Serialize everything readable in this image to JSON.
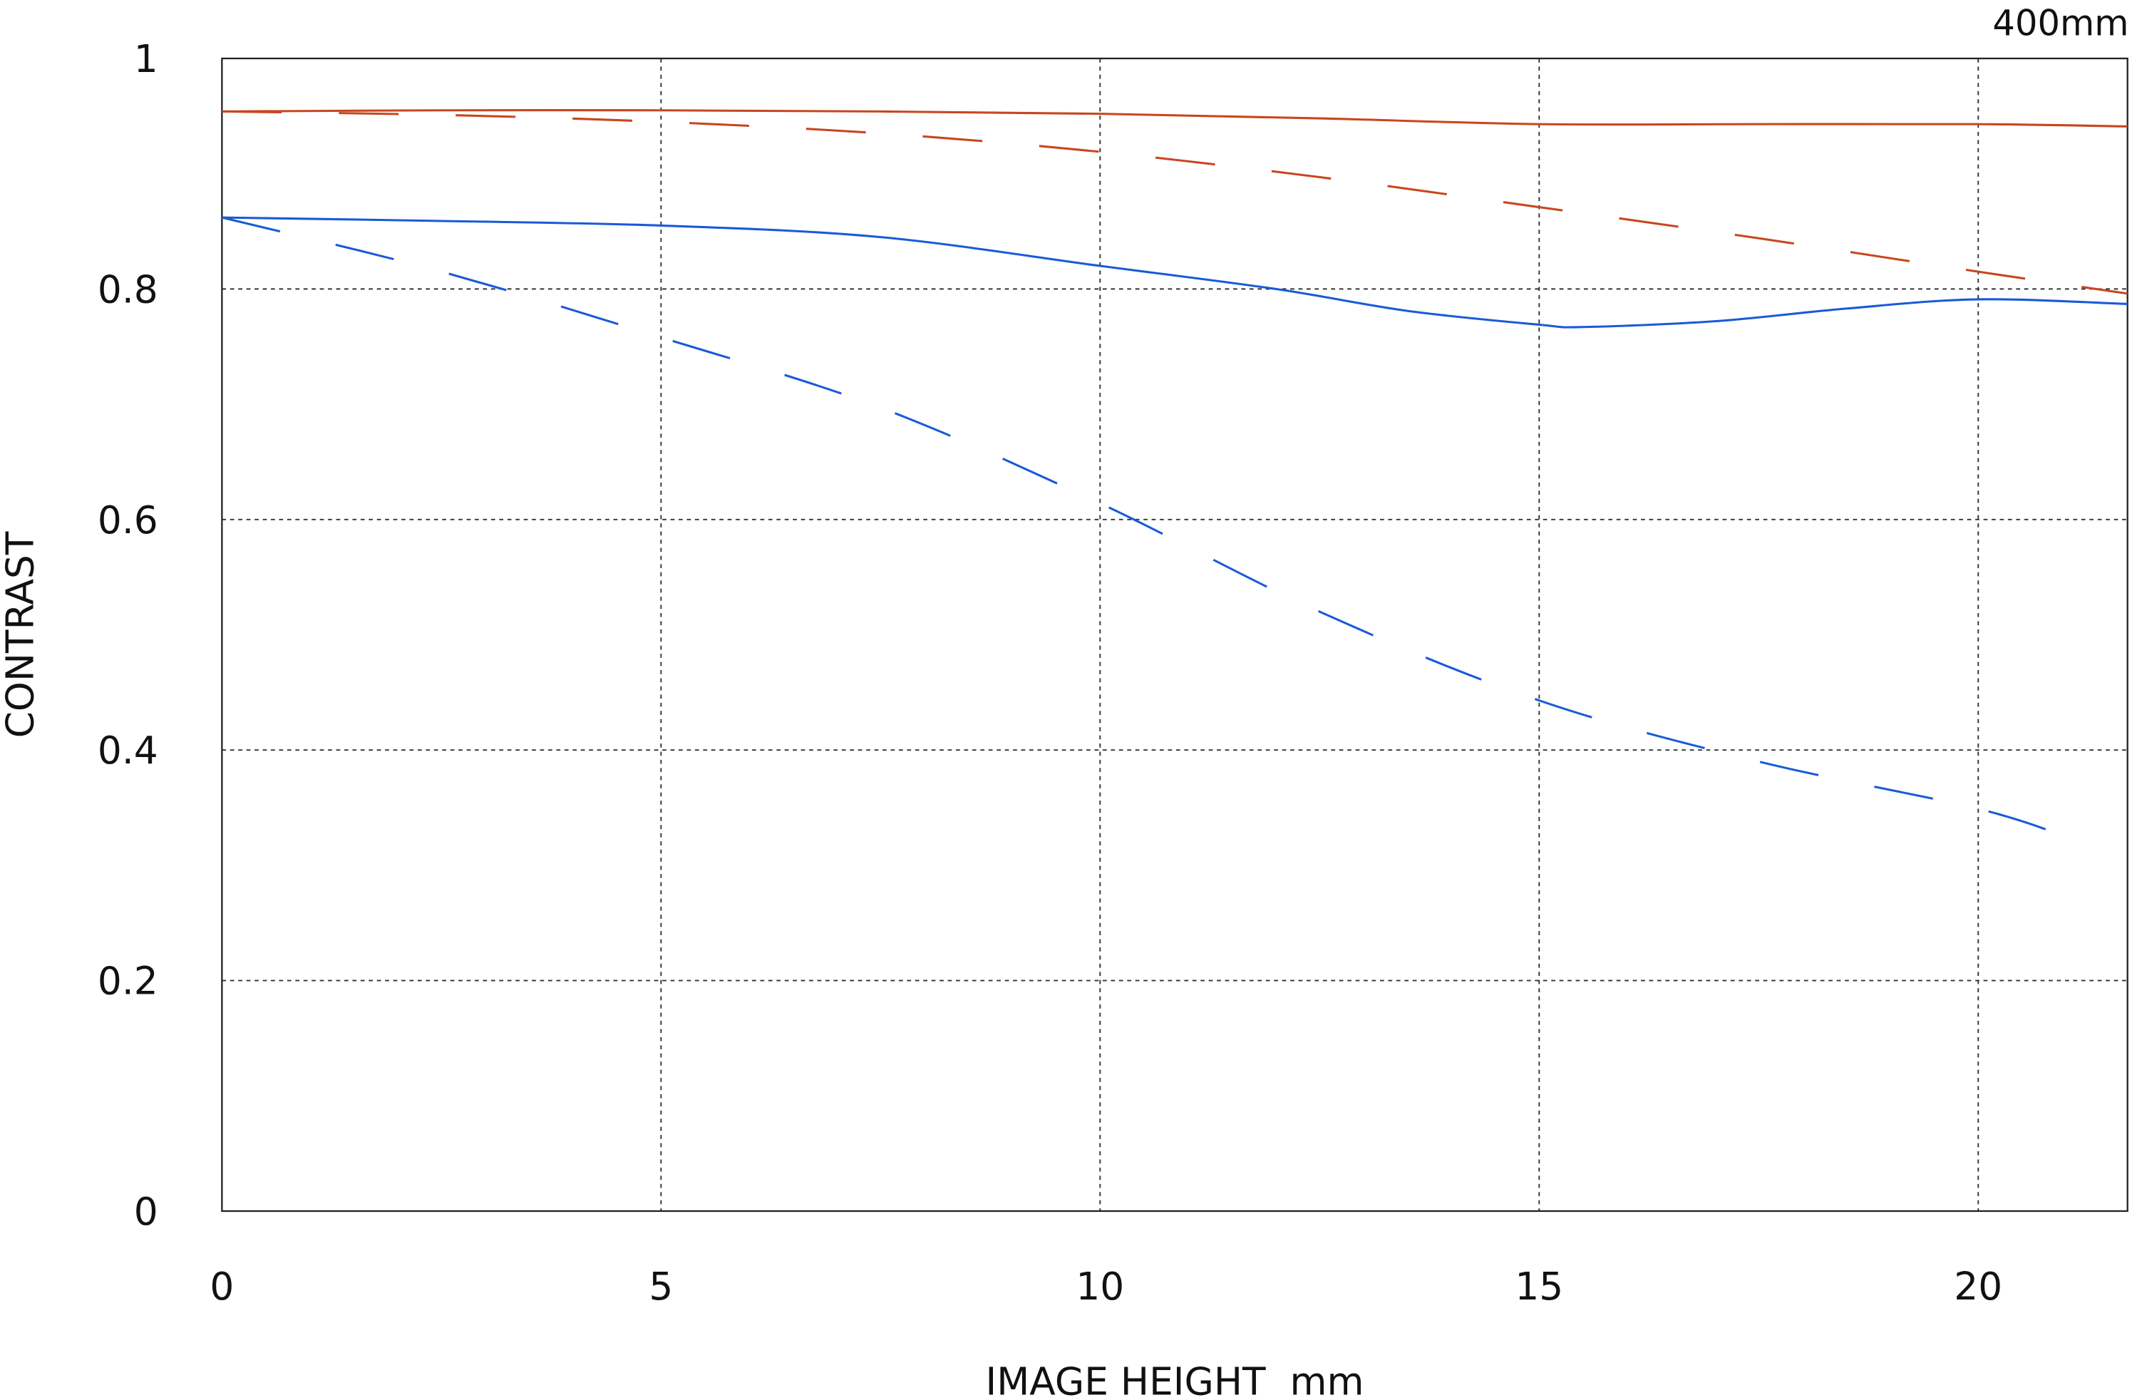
{
  "chart_data": {
    "type": "line",
    "title": "400mm",
    "xlabel": "IMAGE HEIGHT  mm",
    "ylabel": "CONTRAST",
    "xlim": [
      0,
      21.7
    ],
    "ylim": [
      0,
      1
    ],
    "xticks": [
      "0",
      "5",
      "10",
      "15",
      "20"
    ],
    "yticks": [
      "0",
      "0.2",
      "0.4",
      "0.6",
      "0.8",
      "1"
    ],
    "xtick_values": [
      0,
      5,
      10,
      15,
      20
    ],
    "ytick_values": [
      0,
      0.2,
      0.4,
      0.6,
      0.8,
      1
    ],
    "grid": true,
    "series": [
      {
        "color": "#c8461e",
        "style": "solid",
        "x": [
          0,
          2.5,
          5,
          7.5,
          10,
          12.5,
          15,
          17.5,
          20,
          21.7
        ],
        "y": [
          0.954,
          0.955,
          0.955,
          0.954,
          0.952,
          0.948,
          0.943,
          0.943,
          0.943,
          0.941
        ]
      },
      {
        "color": "#c8461e",
        "style": "dashed",
        "x": [
          0,
          2.5,
          5,
          7.5,
          10,
          12.5,
          15,
          17.5,
          20,
          21.7
        ],
        "y": [
          0.954,
          0.951,
          0.945,
          0.935,
          0.919,
          0.897,
          0.871,
          0.844,
          0.815,
          0.796
        ]
      },
      {
        "color": "#1a5ad8",
        "style": "solid",
        "x": [
          0,
          2.5,
          5,
          7.5,
          10,
          12,
          13.5,
          15,
          15.5,
          17,
          18.5,
          20,
          21.7
        ],
        "y": [
          0.862,
          0.859,
          0.855,
          0.845,
          0.82,
          0.8,
          0.781,
          0.769,
          0.767,
          0.772,
          0.783,
          0.791,
          0.787
        ]
      },
      {
        "color": "#1a5ad8",
        "style": "dashed",
        "x": [
          0,
          2.5,
          5,
          7.5,
          10,
          12.5,
          15,
          17.5,
          20,
          21.1
        ],
        "y": [
          0.862,
          0.815,
          0.758,
          0.697,
          0.614,
          0.52,
          0.443,
          0.39,
          0.349,
          0.322
        ]
      }
    ]
  }
}
